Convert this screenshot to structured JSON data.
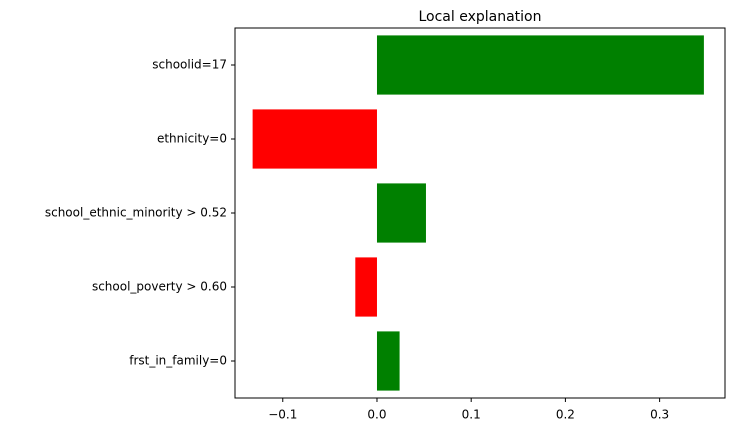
{
  "chart_data": {
    "type": "barh",
    "title": "Local explanation",
    "categories": [
      "schoolid=17",
      "ethnicity=0",
      "school_ethnic_minority > 0.52",
      "school_poverty > 0.60",
      "frst_in_family=0"
    ],
    "values": [
      0.347,
      -0.132,
      0.052,
      -0.023,
      0.024
    ],
    "colors": [
      "#008000",
      "#ff0000",
      "#008000",
      "#ff0000",
      "#008000"
    ],
    "xlim": [
      -0.1507,
      0.3694
    ],
    "xticks": [
      {
        "value": -0.1,
        "label": "−0.1"
      },
      {
        "value": 0,
        "label": "0.0"
      },
      0.1,
      0.2,
      0.3
    ]
  }
}
